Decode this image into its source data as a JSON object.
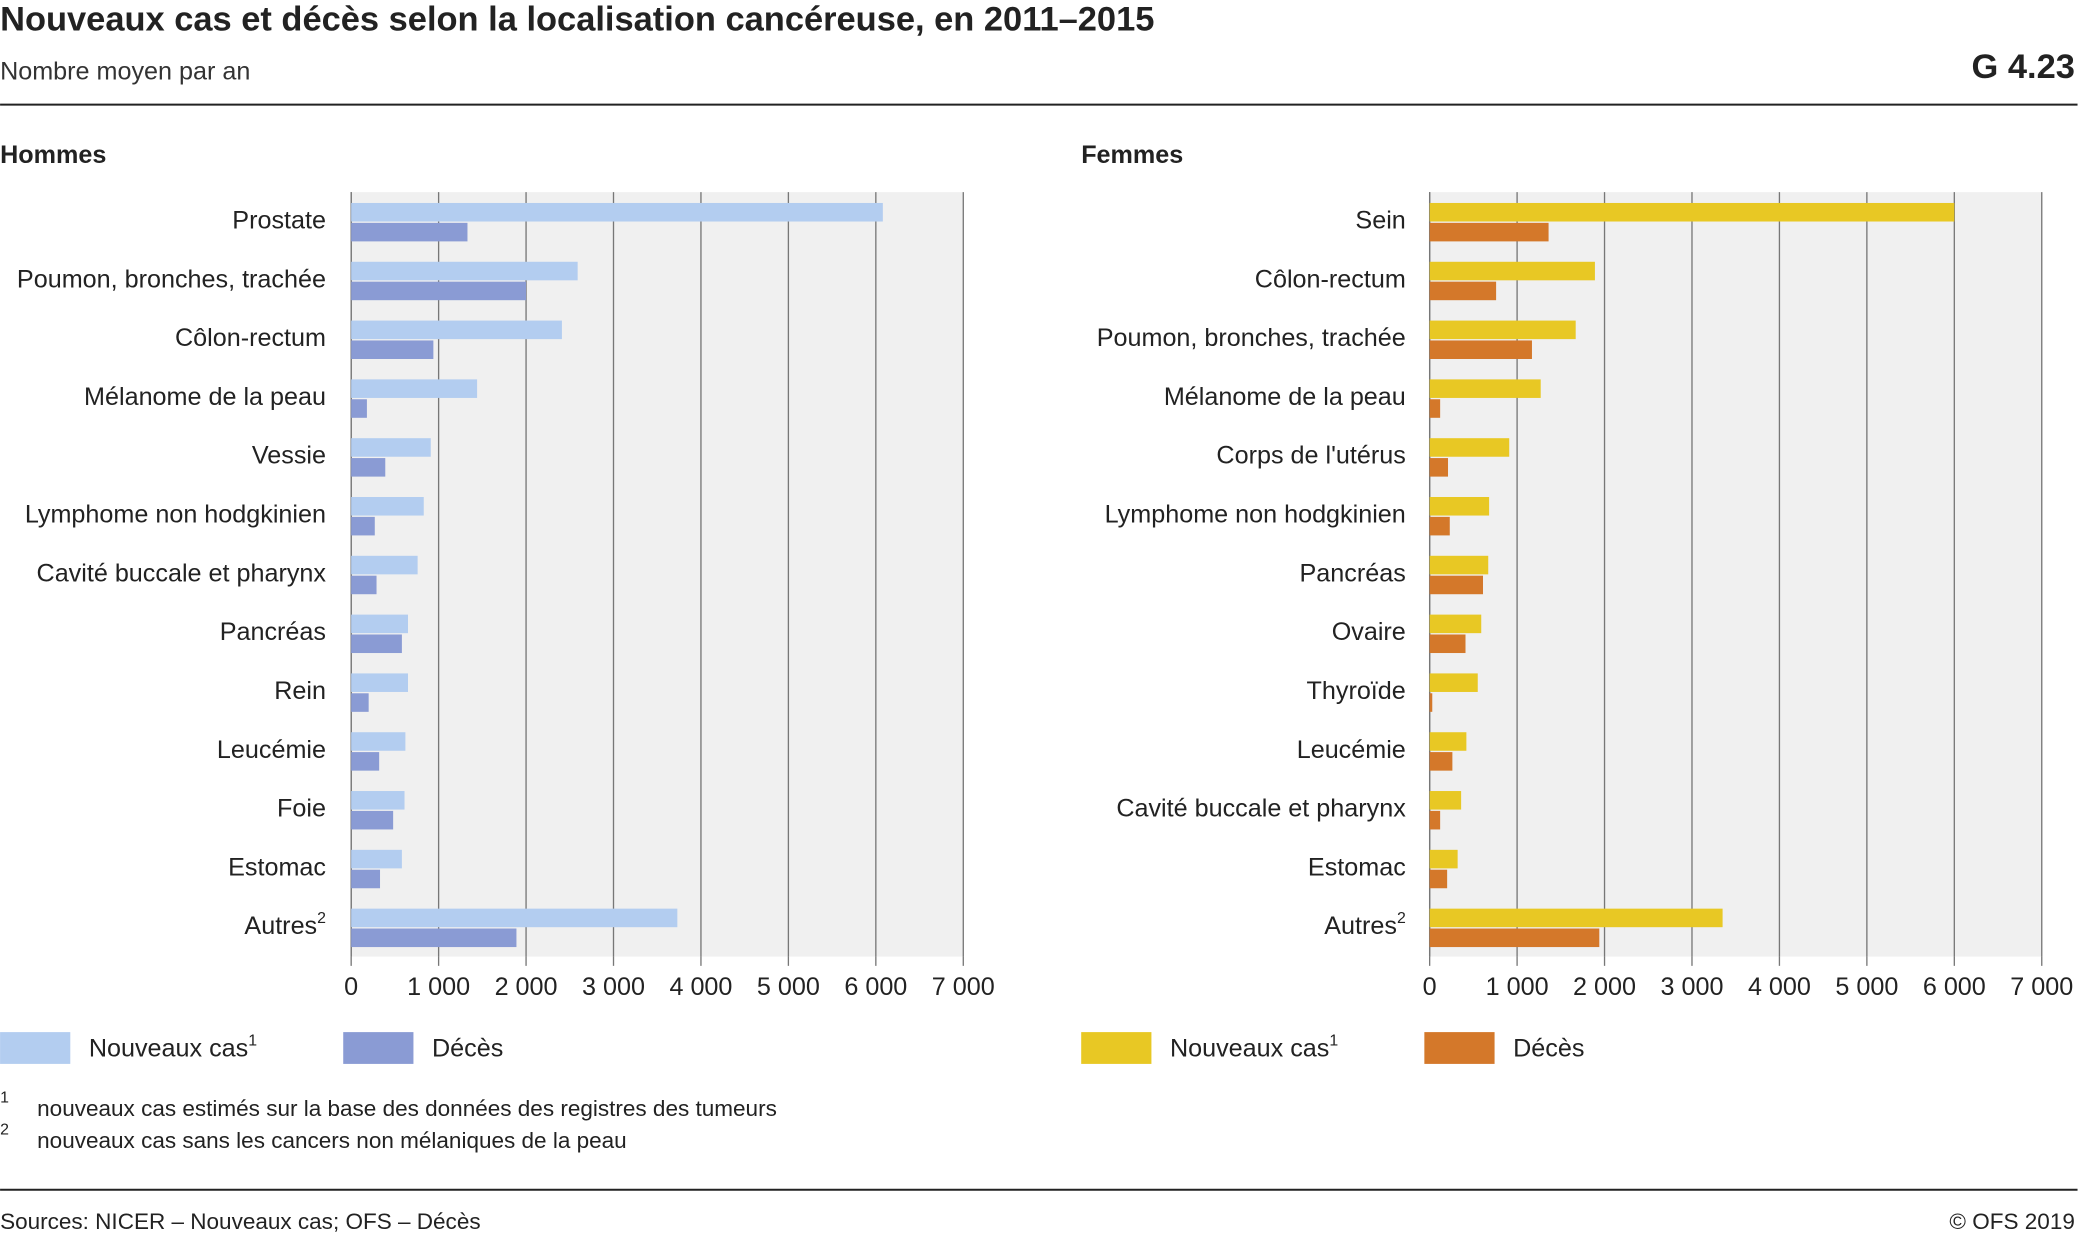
{
  "header": {
    "title": "Nouveaux cas et décès selon la localisation cancéreuse, en 2011–2015",
    "subtitle": "Nombre moyen par an",
    "code": "G 4.23"
  },
  "chart_data": [
    {
      "type": "bar",
      "orientation": "horizontal",
      "title": "Hommes",
      "categories": [
        "Prostate",
        "Poumon, bronches, trachée",
        "Côlon-rectum",
        "Mélanome de la peau",
        "Vessie",
        "Lymphome non hodgkinien",
        "Cavité buccale et pharynx",
        "Pancréas",
        "Rein",
        "Leucémie",
        "Foie",
        "Estomac",
        "Autres"
      ],
      "category_notes": [
        null,
        null,
        null,
        null,
        null,
        null,
        null,
        null,
        null,
        null,
        null,
        null,
        "2"
      ],
      "series": [
        {
          "name": "Nouveaux cas",
          "name_note": "1",
          "color": "#b3cdf0",
          "values": [
            6080,
            2590,
            2410,
            1440,
            910,
            830,
            760,
            650,
            650,
            620,
            610,
            580,
            3730
          ]
        },
        {
          "name": "Décès",
          "color": "#8a9bd4",
          "values": [
            1330,
            2000,
            940,
            180,
            390,
            270,
            290,
            580,
            200,
            320,
            480,
            330,
            1890
          ]
        }
      ],
      "xlim": [
        0,
        7000
      ],
      "xticks": [
        0,
        {
          "value": 1000,
          "label": "1 000"
        },
        {
          "value": 2000,
          "label": "2 000"
        },
        {
          "value": 3000,
          "label": "3 000"
        },
        {
          "value": 4000,
          "label": "4 000"
        },
        {
          "value": 5000,
          "label": "5 000"
        },
        {
          "value": 6000,
          "label": "6 000"
        },
        {
          "value": 7000,
          "label": "7 000"
        }
      ],
      "grid": true
    },
    {
      "type": "bar",
      "orientation": "horizontal",
      "title": "Femmes",
      "categories": [
        "Sein",
        "Côlon-rectum",
        "Poumon, bronches, trachée",
        "Mélanome de la peau",
        "Corps de l'utérus",
        "Lymphome non hodgkinien",
        "Pancréas",
        "Ovaire",
        "Thyroïde",
        "Leucémie",
        "Cavité buccale et pharynx",
        "Estomac",
        "Autres"
      ],
      "category_notes": [
        null,
        null,
        null,
        null,
        null,
        null,
        null,
        null,
        null,
        null,
        null,
        null,
        "2"
      ],
      "series": [
        {
          "name": "Nouveaux cas",
          "name_note": "1",
          "color": "#e8c824",
          "values": [
            6000,
            1890,
            1670,
            1270,
            910,
            680,
            670,
            590,
            550,
            420,
            360,
            320,
            3350
          ]
        },
        {
          "name": "Décès",
          "color": "#d4782a",
          "values": [
            1360,
            760,
            1170,
            120,
            210,
            230,
            610,
            410,
            30,
            260,
            120,
            200,
            1940
          ]
        }
      ],
      "xlim": [
        0,
        7000
      ],
      "xticks": [
        0,
        {
          "value": 1000,
          "label": "1 000"
        },
        {
          "value": 2000,
          "label": "2 000"
        },
        {
          "value": 3000,
          "label": "3 000"
        },
        {
          "value": 4000,
          "label": "4 000"
        },
        {
          "value": 5000,
          "label": "5 000"
        },
        {
          "value": 6000,
          "label": "6 000"
        },
        {
          "value": 7000,
          "label": "7 000"
        }
      ],
      "grid": true
    }
  ],
  "footnotes": [
    {
      "mark": "1",
      "text": "nouveaux cas estimés sur la base des données des registres des tumeurs"
    },
    {
      "mark": "2",
      "text": "nouveaux cas sans les cancers non mélaniques de la peau"
    }
  ],
  "footer": {
    "sources": "Sources: NICER – Nouveaux cas; OFS – Décès",
    "copyright": "© OFS 2019"
  }
}
